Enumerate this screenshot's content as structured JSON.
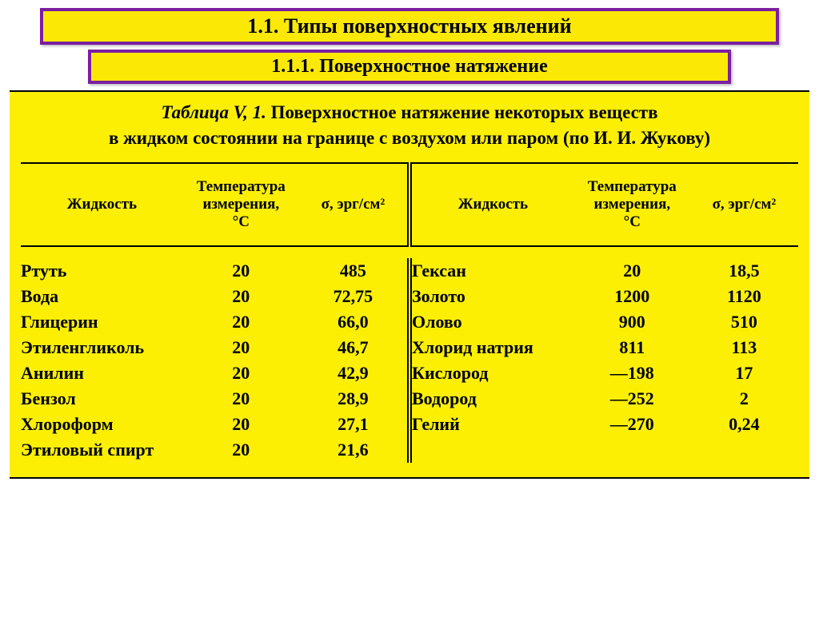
{
  "titles": {
    "section": "1.1. Типы поверхностных явлений",
    "subsection": "1.1.1. Поверхностное натяжение",
    "section_fontsize": 26,
    "subsection_fontsize": 24
  },
  "caption": {
    "line1_prefix": "Таблица V, 1.",
    "line1_rest": " Поверхностное натяжение некоторых веществ",
    "line2": "в жидком состоянии на границе с воздухом или паром (по И. И. Жукову)",
    "fontsize": 23
  },
  "headers": {
    "liquid": "Жидкость",
    "temp_l1": "Температура",
    "temp_l2": "измерения,",
    "temp_l3": "°С",
    "sigma": "σ, эрг/см²",
    "fontsize": 19
  },
  "styling": {
    "background_yellow": "#fcef04",
    "title_yellow": "#fbe905",
    "border_purple": "#7a1fa2",
    "text_color": "#000000",
    "rule_color": "#000000",
    "body_fontsize": 22
  },
  "left": [
    {
      "name": "Ртуть",
      "temp": "20",
      "sigma": "485"
    },
    {
      "name": "Вода",
      "temp": "20",
      "sigma": "72,75"
    },
    {
      "name": "Глицерин",
      "temp": "20",
      "sigma": "66,0"
    },
    {
      "name": "Этиленгликоль",
      "temp": "20",
      "sigma": "46,7"
    },
    {
      "name": "Анилин",
      "temp": "20",
      "sigma": "42,9"
    },
    {
      "name": "Бензол",
      "temp": "20",
      "sigma": "28,9"
    },
    {
      "name": "Хлороформ",
      "temp": "20",
      "sigma": "27,1"
    },
    {
      "name": "Этиловый спирт",
      "temp": "20",
      "sigma": "21,6"
    }
  ],
  "right": [
    {
      "name": "Гексан",
      "temp": "20",
      "sigma": "18,5"
    },
    {
      "name": "Золото",
      "temp": "1200",
      "sigma": "1120"
    },
    {
      "name": "Олово",
      "temp": "900",
      "sigma": "510"
    },
    {
      "name": "Хлорид натрия",
      "temp": "811",
      "sigma": "113"
    },
    {
      "name": "Кислород",
      "temp": "—198",
      "sigma": "17"
    },
    {
      "name": "Водород",
      "temp": "—252",
      "sigma": "2"
    },
    {
      "name": "Гелий",
      "temp": "—270",
      "sigma": "0,24"
    }
  ]
}
